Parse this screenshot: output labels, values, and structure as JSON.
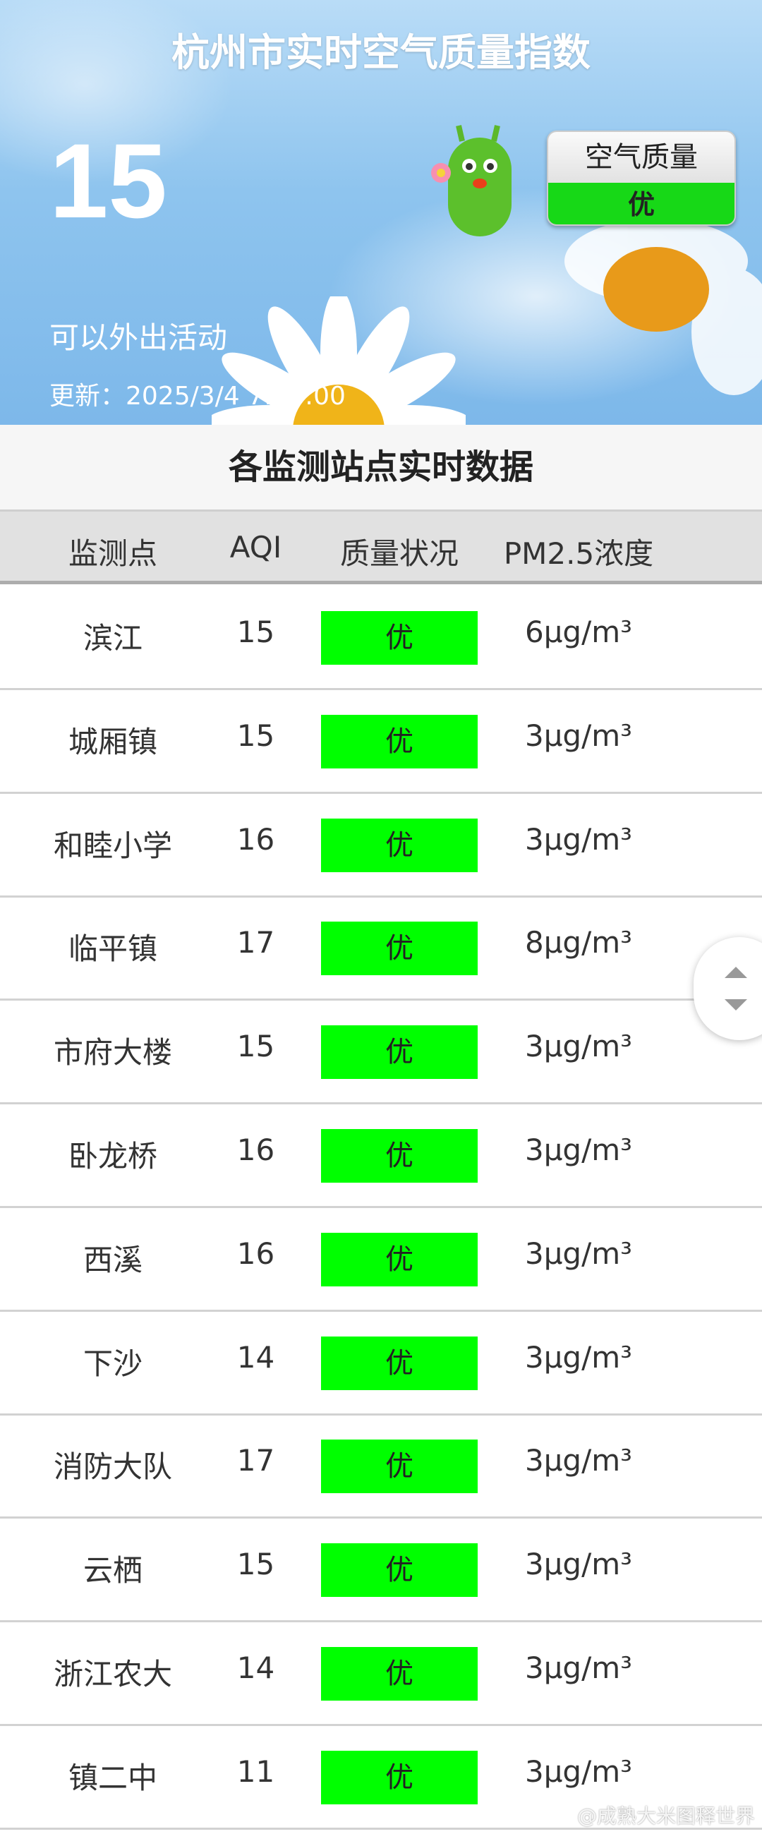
{
  "hero": {
    "title": "杭州市实时空气质量指数",
    "aqi": "15",
    "advice": "可以外出活动",
    "updated": "更新：2025/3/4 7:00:00",
    "badge": {
      "label": "空气质量",
      "level": "优"
    }
  },
  "section_title": "各监测站点实时数据",
  "table": {
    "headers": [
      "监测点",
      "AQI",
      "质量状况",
      "PM2.5浓度"
    ],
    "rows": [
      {
        "station": "滨江",
        "aqi": "15",
        "quality": "优",
        "pm25": "6μg/m³"
      },
      {
        "station": "城厢镇",
        "aqi": "15",
        "quality": "优",
        "pm25": "3μg/m³"
      },
      {
        "station": "和睦小学",
        "aqi": "16",
        "quality": "优",
        "pm25": "3μg/m³"
      },
      {
        "station": "临平镇",
        "aqi": "17",
        "quality": "优",
        "pm25": "8μg/m³"
      },
      {
        "station": "市府大楼",
        "aqi": "15",
        "quality": "优",
        "pm25": "3μg/m³"
      },
      {
        "station": "卧龙桥",
        "aqi": "16",
        "quality": "优",
        "pm25": "3μg/m³"
      },
      {
        "station": "西溪",
        "aqi": "16",
        "quality": "优",
        "pm25": "3μg/m³"
      },
      {
        "station": "下沙",
        "aqi": "14",
        "quality": "优",
        "pm25": "3μg/m³"
      },
      {
        "station": "消防大队",
        "aqi": "17",
        "quality": "优",
        "pm25": "3μg/m³"
      },
      {
        "station": "云栖",
        "aqi": "15",
        "quality": "优",
        "pm25": "3μg/m³"
      },
      {
        "station": "浙江农大",
        "aqi": "14",
        "quality": "优",
        "pm25": "3μg/m³"
      },
      {
        "station": "镇二中",
        "aqi": "11",
        "quality": "优",
        "pm25": "3μg/m³"
      }
    ]
  },
  "colors": {
    "good": "#00ff00"
  },
  "watermark": "@成熟大米图释世界"
}
